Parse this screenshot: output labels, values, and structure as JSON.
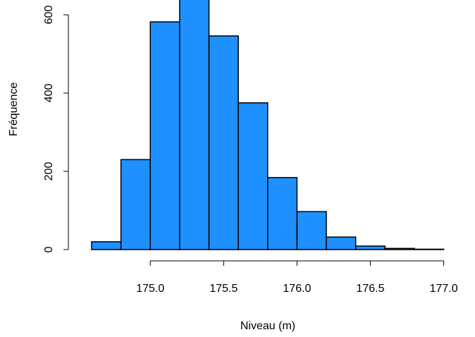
{
  "chart_data": {
    "type": "histogram",
    "x_label": "Niveau (m)",
    "y_label": "Fréquence",
    "bins": [
      174.6,
      174.8,
      175.0,
      175.2,
      175.4,
      175.6,
      175.8,
      176.0,
      176.2,
      176.4,
      176.6,
      176.8,
      177.0
    ],
    "values": [
      20,
      230,
      582,
      660,
      546,
      375,
      184,
      97,
      32,
      9,
      3,
      1
    ],
    "color": "#1e90ff",
    "xlim": [
      174.6,
      177.0
    ],
    "xticks": [
      {
        "value": 175.0,
        "label": "175.0"
      },
      {
        "value": 175.5,
        "label": "175.5"
      },
      {
        "value": 176.0,
        "label": "176.0"
      },
      {
        "value": 176.5,
        "label": "176.5"
      },
      {
        "value": 177.0,
        "label": "177.0"
      }
    ],
    "ylim": [
      0,
      600
    ],
    "yticks": [
      0,
      200,
      400,
      600
    ]
  }
}
